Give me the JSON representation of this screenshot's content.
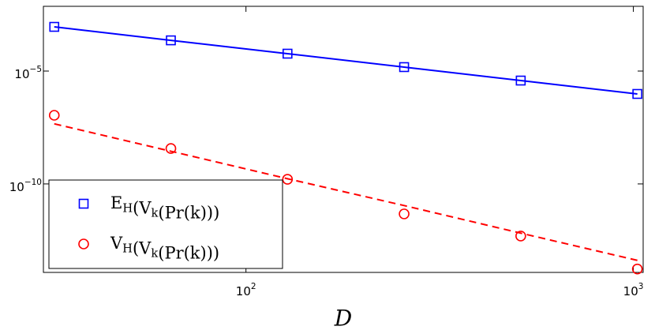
{
  "chart_data": {
    "type": "line",
    "x_label": "D",
    "xlog": true,
    "ylog": true,
    "x": [
      32,
      64,
      128,
      256,
      512,
      1024
    ],
    "series": [
      {
        "name": "E_H(V_k(Pr(k)))",
        "color": "#0000ff",
        "marker": "square",
        "line": "none",
        "values": [
          0.00091,
          0.00023,
          5.9e-05,
          1.5e-05,
          3.8e-06,
          9.7e-07
        ]
      },
      {
        "color": "#0000ff",
        "marker": "none",
        "line": "solid",
        "values": [
          0.00091,
          0.00023,
          5.9e-05,
          1.5e-05,
          3.8e-06,
          9.7e-07
        ]
      },
      {
        "name": "V_H(V_k(Pr(k)))",
        "color": "#ff0000",
        "marker": "circle",
        "line": "none",
        "values": [
          1.1e-07,
          3.7e-09,
          1.6e-10,
          4.7e-12,
          4.9e-13,
          1.7e-14
        ]
      },
      {
        "color": "#ff0000",
        "marker": "none",
        "line": "dashed",
        "values": [
          4.6e-08,
          2.8e-09,
          1.7e-10,
          1.1e-11,
          6.6e-13,
          4.1e-14
        ]
      }
    ],
    "xlim": [
      30,
      1060
    ],
    "ylim": [
      1.2e-14,
      0.0074
    ],
    "xticks": [
      {
        "value": 100,
        "label": "10^2"
      },
      {
        "value": 1000,
        "label": "10^3"
      }
    ],
    "yticks": [
      {
        "value": 1e-10,
        "label": "10^−10"
      },
      {
        "value": 1e-05,
        "label": "10^−5"
      }
    ],
    "legend": "lower left"
  }
}
